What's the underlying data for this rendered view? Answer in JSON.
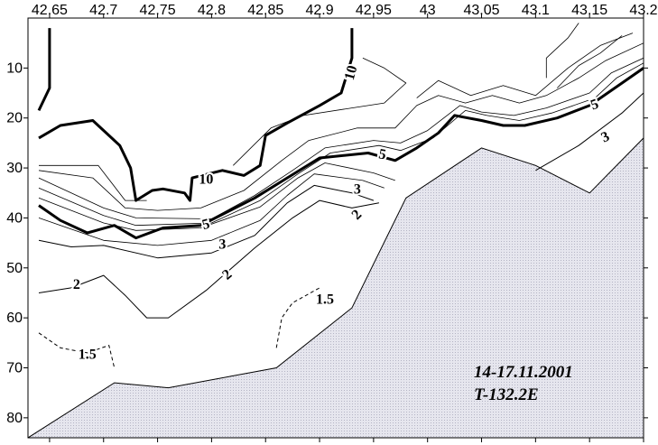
{
  "chart_data": {
    "type": "contour",
    "title": "",
    "xlabel": "",
    "ylabel": "",
    "xlim": [
      42.63,
      43.2
    ],
    "ylim": [
      0,
      84
    ],
    "y_inverted": true,
    "x_ticks": [
      "42.65",
      "42.7",
      "42.75",
      "42.8",
      "42.85",
      "42.9",
      "42.95",
      "43",
      "43.05",
      "43.1",
      "43.15",
      "43.2"
    ],
    "y_ticks": [
      "10",
      "20",
      "30",
      "40",
      "50",
      "60",
      "70",
      "80"
    ],
    "annotation_lines": [
      "14-17.11.2001",
      "T-132.2E"
    ],
    "bottom_fill_color": "#e6e6ee",
    "bottom": [
      [
        42.63,
        84
      ],
      [
        42.71,
        73
      ],
      [
        42.76,
        74
      ],
      [
        42.86,
        70
      ],
      [
        42.93,
        58
      ],
      [
        42.98,
        36
      ],
      [
        43.05,
        26
      ],
      [
        43.1,
        29.5
      ],
      [
        43.15,
        35
      ],
      [
        43.2,
        24
      ],
      [
        43.2,
        84
      ]
    ],
    "contours": [
      {
        "level": "10",
        "bold": true,
        "points": [
          [
            42.65,
            2
          ],
          [
            42.65,
            14
          ],
          [
            42.64,
            18.5
          ]
        ]
      },
      {
        "level": "10",
        "bold": true,
        "points": [
          [
            42.64,
            24
          ],
          [
            42.66,
            21.5
          ],
          [
            42.69,
            20.5
          ],
          [
            42.715,
            25.5
          ],
          [
            42.725,
            30
          ],
          [
            42.73,
            36.5
          ],
          [
            42.745,
            34.5
          ],
          [
            42.755,
            34.2
          ],
          [
            42.775,
            35
          ],
          [
            42.78,
            36.5
          ],
          [
            42.782,
            32
          ],
          [
            42.81,
            30.5
          ],
          [
            42.83,
            31.5
          ],
          [
            42.845,
            29.5
          ],
          [
            42.85,
            23.5
          ],
          [
            42.87,
            21
          ],
          [
            42.9,
            17.5
          ],
          [
            42.92,
            15
          ],
          [
            42.93,
            8
          ],
          [
            42.93,
            2
          ]
        ]
      },
      {
        "level": "5",
        "bold": true,
        "points": [
          [
            42.64,
            37.5
          ],
          [
            42.66,
            40.5
          ],
          [
            42.685,
            43
          ],
          [
            42.71,
            41.5
          ],
          [
            42.73,
            44
          ],
          [
            42.755,
            42
          ],
          [
            42.79,
            41.5
          ],
          [
            42.84,
            36
          ],
          [
            42.87,
            32
          ],
          [
            42.9,
            28
          ],
          [
            42.945,
            27
          ],
          [
            42.97,
            28.5
          ],
          [
            42.99,
            26
          ],
          [
            43.01,
            23
          ],
          [
            43.025,
            19.5
          ],
          [
            43.05,
            20.5
          ],
          [
            43.07,
            21.5
          ],
          [
            43.09,
            21.5
          ],
          [
            43.12,
            20
          ],
          [
            43.15,
            17.5
          ],
          [
            43.18,
            13
          ],
          [
            43.2,
            10
          ]
        ]
      },
      {
        "level": "3",
        "bold": false,
        "points": [
          [
            42.64,
            44.5
          ],
          [
            42.67,
            45.8
          ],
          [
            42.7,
            45.5
          ],
          [
            42.75,
            48
          ],
          [
            42.8,
            47
          ],
          [
            42.84,
            43.5
          ],
          [
            42.87,
            37
          ],
          [
            42.895,
            33.5
          ],
          [
            42.93,
            35
          ],
          [
            42.95,
            36.5
          ]
        ]
      },
      {
        "level": "3",
        "bold": false,
        "points": [
          [
            43.1,
            30.5
          ],
          [
            43.14,
            25.5
          ],
          [
            43.18,
            19
          ],
          [
            43.2,
            15
          ]
        ]
      },
      {
        "level": "2",
        "bold": false,
        "points": [
          [
            42.64,
            55
          ],
          [
            42.67,
            54
          ],
          [
            42.7,
            51.5
          ],
          [
            42.72,
            55.5
          ],
          [
            42.74,
            60
          ],
          [
            42.76,
            60
          ],
          [
            42.795,
            54.5
          ],
          [
            42.84,
            46
          ],
          [
            42.875,
            40
          ],
          [
            42.9,
            36.5
          ],
          [
            42.93,
            38
          ],
          [
            42.955,
            37
          ]
        ]
      },
      {
        "level": "1.5",
        "bold": false,
        "dashed": true,
        "points": [
          [
            42.64,
            63
          ],
          [
            42.66,
            66
          ],
          [
            42.685,
            67
          ],
          [
            42.705,
            65.5
          ],
          [
            42.71,
            70
          ]
        ]
      },
      {
        "level": "1.5",
        "bold": false,
        "dashed": true,
        "points": [
          [
            42.86,
            66
          ],
          [
            42.865,
            60
          ],
          [
            42.875,
            57
          ],
          [
            42.9,
            54
          ]
        ]
      }
    ],
    "thin_contours": [
      [
        [
          42.64,
          32
        ],
        [
          42.7,
          38
        ],
        [
          42.73,
          40
        ],
        [
          42.8,
          40.2
        ],
        [
          42.84,
          35.5
        ],
        [
          42.875,
          30.5
        ],
        [
          42.905,
          26
        ],
        [
          42.95,
          24.5
        ],
        [
          42.975,
          25
        ],
        [
          43.0,
          22.5
        ],
        [
          43.03,
          17.5
        ],
        [
          43.05,
          18.8
        ],
        [
          43.08,
          19.5
        ],
        [
          43.11,
          18
        ],
        [
          43.15,
          15
        ],
        [
          43.17,
          11
        ],
        [
          43.2,
          8
        ]
      ],
      [
        [
          42.64,
          34
        ],
        [
          42.7,
          39.5
        ],
        [
          42.73,
          41.5
        ],
        [
          42.8,
          41
        ],
        [
          42.845,
          36.5
        ],
        [
          42.88,
          31.2
        ],
        [
          42.91,
          27
        ],
        [
          42.955,
          25.5
        ],
        [
          42.975,
          26.5
        ],
        [
          43.005,
          24
        ],
        [
          43.035,
          18.5
        ],
        [
          43.055,
          19.5
        ],
        [
          43.085,
          20.5
        ],
        [
          43.115,
          19
        ],
        [
          43.155,
          16
        ],
        [
          43.175,
          12
        ],
        [
          43.2,
          9
        ]
      ],
      [
        [
          42.64,
          36
        ],
        [
          42.7,
          41
        ],
        [
          42.73,
          42.5
        ],
        [
          42.79,
          42
        ],
        [
          42.845,
          37.8
        ],
        [
          42.88,
          32
        ],
        [
          42.905,
          29
        ],
        [
          42.95,
          31
        ],
        [
          42.97,
          32.5
        ]
      ],
      [
        [
          42.64,
          40
        ],
        [
          42.7,
          44.5
        ],
        [
          42.75,
          45.5
        ],
        [
          42.8,
          44.5
        ],
        [
          42.845,
          40.5
        ],
        [
          42.87,
          35.5
        ],
        [
          42.895,
          31.2
        ],
        [
          42.94,
          32.5
        ],
        [
          42.96,
          34
        ]
      ],
      [
        [
          42.64,
          30.5
        ],
        [
          42.69,
          32
        ],
        [
          42.72,
          38
        ],
        [
          42.75,
          38.5
        ],
        [
          42.79,
          38
        ],
        [
          42.83,
          34.5
        ],
        [
          42.865,
          28.5
        ],
        [
          42.89,
          24.5
        ],
        [
          42.935,
          22
        ],
        [
          42.97,
          22
        ],
        [
          42.99,
          17.5
        ],
        [
          43.01,
          15.5
        ],
        [
          43.035,
          17
        ],
        [
          43.06,
          15.5
        ],
        [
          43.085,
          17
        ],
        [
          43.11,
          15.5
        ],
        [
          43.14,
          12
        ],
        [
          43.165,
          8.5
        ],
        [
          43.2,
          5
        ]
      ],
      [
        [
          42.64,
          29.5
        ],
        [
          42.67,
          29.5
        ],
        [
          42.695,
          29.5
        ],
        [
          42.72,
          36.5
        ],
        [
          42.74,
          36.5
        ]
      ],
      [
        [
          42.82,
          29.5
        ],
        [
          42.855,
          22
        ],
        [
          42.885,
          19.5
        ],
        [
          42.93,
          18
        ],
        [
          42.96,
          17
        ],
        [
          42.98,
          13
        ],
        [
          42.96,
          10
        ],
        [
          42.94,
          8
        ]
      ],
      [
        [
          42.99,
          16
        ],
        [
          43.01,
          12.5
        ],
        [
          43.04,
          15.5
        ],
        [
          43.07,
          13.5
        ],
        [
          43.1,
          15.5
        ],
        [
          43.13,
          10
        ],
        [
          43.16,
          5.5
        ],
        [
          43.19,
          3
        ]
      ],
      [
        [
          43.11,
          12
        ],
        [
          43.11,
          8
        ],
        [
          43.13,
          4
        ],
        [
          43.14,
          1
        ]
      ],
      [
        [
          43.12,
          14
        ],
        [
          43.14,
          9.5
        ],
        [
          43.16,
          7
        ],
        [
          43.18,
          3.5
        ]
      ]
    ],
    "labels": [
      {
        "text": "10",
        "x": 42.93,
        "y": 11,
        "rotate": -75
      },
      {
        "text": "10",
        "x": 42.795,
        "y": 32.5,
        "rotate": 0
      },
      {
        "text": "5",
        "x": 42.958,
        "y": 27.5,
        "rotate": 10
      },
      {
        "text": "5",
        "x": 42.795,
        "y": 41.5,
        "rotate": -15
      },
      {
        "text": "5",
        "x": 43.155,
        "y": 17.5,
        "rotate": -20
      },
      {
        "text": "3",
        "x": 42.935,
        "y": 34.5,
        "rotate": 0
      },
      {
        "text": "3",
        "x": 42.81,
        "y": 45.5,
        "rotate": 0
      },
      {
        "text": "3",
        "x": 43.165,
        "y": 24,
        "rotate": -25
      },
      {
        "text": "2",
        "x": 42.675,
        "y": 53.5,
        "rotate": 0
      },
      {
        "text": "2",
        "x": 42.815,
        "y": 51.5,
        "rotate": -40
      },
      {
        "text": "2",
        "x": 42.935,
        "y": 39.5,
        "rotate": -45
      },
      {
        "text": "1.5",
        "x": 42.905,
        "y": 56.5,
        "rotate": 0
      },
      {
        "text": "1.5",
        "x": 42.685,
        "y": 67.5,
        "rotate": 0
      }
    ]
  }
}
